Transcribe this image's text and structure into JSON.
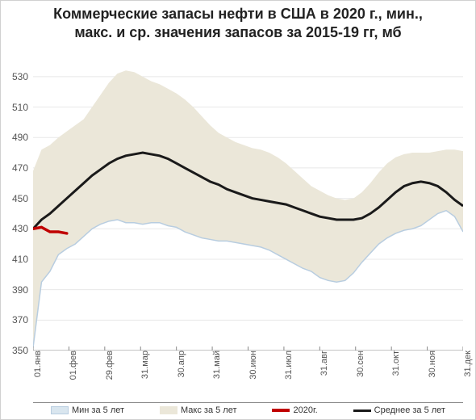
{
  "chart": {
    "type": "area-line",
    "title_line1": "Коммерческие запасы нефти в США в 2020 г., мин.,",
    "title_line2": "макс. и ср. значения запасов за 2015-19 гг, мб",
    "title_fontsize": 18,
    "title_fontweight": "bold",
    "title_color": "#222222",
    "background_color": "#ffffff",
    "border_color": "#d0d0d0",
    "grid_color": "#e8e8e8",
    "axis_text_color": "#555555",
    "axis_fontsize": 12,
    "ylim": [
      350,
      540
    ],
    "ytick_step": 20,
    "yticks": [
      350,
      370,
      390,
      410,
      430,
      450,
      470,
      490,
      510,
      530
    ],
    "x_labels": [
      "01.янв",
      "01.фев",
      "29.фев",
      "31.мар",
      "30.апр",
      "31.май",
      "30.июн",
      "31.июл",
      "31.авг",
      "30.сен",
      "31.окт",
      "30.ноя",
      "31.дек"
    ],
    "x_label_rotation": -90,
    "series": {
      "min5y": {
        "label": "Мин за 5 лет",
        "color": "#d9e6ef",
        "stroke": "#b8cde0",
        "type": "area-lower",
        "values": [
          352,
          395,
          402,
          413,
          417,
          420,
          425,
          430,
          433,
          435,
          436,
          434,
          434,
          433,
          434,
          434,
          432,
          431,
          428,
          426,
          424,
          423,
          422,
          422,
          421,
          420,
          419,
          418,
          416,
          413,
          410,
          407,
          404,
          402,
          398,
          396,
          395,
          396,
          401,
          408,
          414,
          420,
          424,
          427,
          429,
          430,
          432,
          436,
          440,
          442,
          438,
          428
        ]
      },
      "max5y": {
        "label": "Макс за 5 лет",
        "color": "#ebe7d9",
        "stroke": "#ebe7d9",
        "type": "area-upper",
        "values": [
          468,
          482,
          485,
          490,
          494,
          498,
          502,
          510,
          518,
          526,
          532,
          534,
          533,
          530,
          527,
          525,
          522,
          519,
          515,
          510,
          504,
          498,
          493,
          490,
          487,
          485,
          483,
          482,
          480,
          477,
          473,
          468,
          463,
          458,
          455,
          452,
          450,
          449,
          450,
          454,
          460,
          467,
          473,
          477,
          479,
          480,
          480,
          480,
          481,
          482,
          482,
          481
        ]
      },
      "avg5y": {
        "label": "Среднее за 5 лет",
        "color": "#1a1a1a",
        "width": 3,
        "type": "line",
        "values": [
          430,
          436,
          440,
          445,
          450,
          455,
          460,
          465,
          469,
          473,
          476,
          478,
          479,
          480,
          479,
          478,
          476,
          473,
          470,
          467,
          464,
          461,
          459,
          456,
          454,
          452,
          450,
          449,
          448,
          447,
          446,
          444,
          442,
          440,
          438,
          437,
          436,
          436,
          436,
          437,
          440,
          444,
          449,
          454,
          458,
          460,
          461,
          460,
          458,
          454,
          449,
          445
        ]
      },
      "y2020": {
        "label": "2020г.",
        "color": "#c00000",
        "width": 3.5,
        "type": "line",
        "values": [
          430,
          431,
          428,
          428,
          427
        ]
      }
    },
    "legend": {
      "position": "bottom",
      "border_top_color": "#888888",
      "fontsize": 11,
      "items": [
        {
          "key": "min5y",
          "swatch_type": "area"
        },
        {
          "key": "max5y",
          "swatch_type": "area"
        },
        {
          "key": "y2020",
          "swatch_type": "line"
        },
        {
          "key": "avg5y",
          "swatch_type": "line"
        }
      ]
    }
  }
}
